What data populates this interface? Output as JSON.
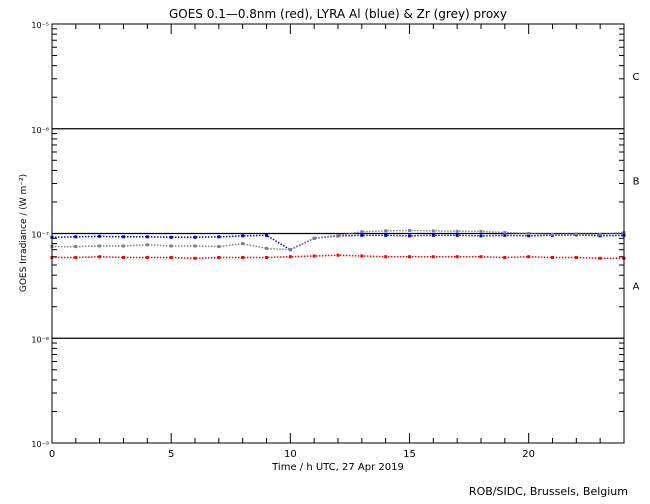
{
  "chart_data": {
    "type": "scatter",
    "title": "GOES 0.1—0.8nm (red), LYRA Al (blue) & Zr (grey) proxy",
    "xlabel": "Time / h UTC, 27 Apr 2019",
    "ylabel": "GOES Irradiance / (W m⁻²)",
    "xlim": [
      0,
      24
    ],
    "ylim": [
      1e-09,
      1e-05
    ],
    "yscale": "log",
    "x_ticks": [
      "0",
      "5",
      "10",
      "15",
      "20"
    ],
    "y_ticks": [
      {
        "value": 1e-05,
        "label": "10⁻⁵"
      },
      {
        "value": 1e-06,
        "label": "10⁻⁶"
      },
      {
        "value": 1e-07,
        "label": "10⁻⁷"
      },
      {
        "value": 1e-08,
        "label": "10⁻⁸"
      },
      {
        "value": 1e-09,
        "label": "10⁻⁹"
      }
    ],
    "flare_class_lines": [
      1e-06,
      1e-07,
      1e-08
    ],
    "flare_classes": [
      {
        "label": "C",
        "value": 3.2e-06
      },
      {
        "label": "B",
        "value": 3.2e-07
      },
      {
        "label": "A",
        "value": 3.2e-08
      }
    ],
    "x": [
      0,
      1,
      2,
      3,
      4,
      5,
      6,
      7,
      8,
      9,
      10,
      11,
      12,
      13,
      14,
      15,
      16,
      17,
      18,
      19,
      20,
      21,
      22,
      23,
      24
    ],
    "series": [
      {
        "name": "GOES 0.1-0.8nm",
        "color": "#ff0000",
        "values": [
          5.9e-08,
          5.9e-08,
          6e-08,
          5.9e-08,
          5.9e-08,
          5.9e-08,
          5.8e-08,
          5.9e-08,
          5.9e-08,
          5.9e-08,
          6e-08,
          6.1e-08,
          6.2e-08,
          6.1e-08,
          6e-08,
          6e-08,
          6e-08,
          6e-08,
          6e-08,
          5.9e-08,
          6e-08,
          5.9e-08,
          5.9e-08,
          5.8e-08,
          5.8e-08
        ]
      },
      {
        "name": "LYRA Al proxy",
        "color": "#0000ff",
        "values": [
          9.2e-08,
          9.3e-08,
          9.4e-08,
          9.3e-08,
          9.3e-08,
          9.2e-08,
          9.2e-08,
          9.3e-08,
          9.5e-08,
          9.6e-08,
          7e-08,
          9e-08,
          9.5e-08,
          9.6e-08,
          9.6e-08,
          9.5e-08,
          9.6e-08,
          9.6e-08,
          9.5e-08,
          9.6e-08,
          9.5e-08,
          9.6e-08,
          9.7e-08,
          9.5e-08,
          9.6e-08
        ]
      },
      {
        "name": "LYRA Zr proxy",
        "color": "#808080",
        "values": [
          7.5e-08,
          7.5e-08,
          7.6e-08,
          7.6e-08,
          7.8e-08,
          7.6e-08,
          7.6e-08,
          7.5e-08,
          8e-08,
          7.2e-08,
          7e-08,
          9e-08,
          9.6e-08,
          1.04e-07,
          1.06e-07,
          1.07e-07,
          1.06e-07,
          1.05e-07,
          1.05e-07,
          1.02e-07,
          1e-07,
          9.8e-08,
          9.9e-08,
          9.8e-08,
          1.02e-07
        ]
      }
    ],
    "credit": "ROB/SIDC, Brussels, Belgium"
  }
}
